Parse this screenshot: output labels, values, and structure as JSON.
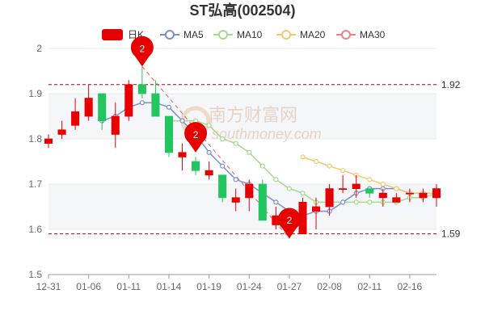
{
  "chart_data": {
    "type": "candlestick",
    "title": "ST弘高(002504)",
    "legend": [
      {
        "name": "日K",
        "color": "#e60000"
      },
      {
        "name": "MA5",
        "color": "#7b8fd0"
      },
      {
        "name": "MA10",
        "color": "#a8d88a"
      },
      {
        "name": "MA20",
        "color": "#f6c66a"
      },
      {
        "name": "MA30",
        "color": "#f08080"
      }
    ],
    "colors": {
      "up": "#e60000",
      "down": "#22c55e",
      "grid": "#e8e8e8",
      "ref_line": "#b00000",
      "pin": "#e60000",
      "trend": "#e06060"
    },
    "y_range": [
      1.5,
      2.0
    ],
    "y_ticks": [
      "1.5",
      "1.6",
      "1.7",
      "1.8",
      "1.9",
      "2"
    ],
    "x_tick_labels": [
      {
        "index": 0,
        "label": "12-31"
      },
      {
        "index": 3,
        "label": "01-06"
      },
      {
        "index": 6,
        "label": "01-11"
      },
      {
        "index": 9,
        "label": "01-14"
      },
      {
        "index": 12,
        "label": "01-19"
      },
      {
        "index": 15,
        "label": "01-24"
      },
      {
        "index": 18,
        "label": "01-27"
      },
      {
        "index": 21,
        "label": "02-08"
      },
      {
        "index": 24,
        "label": "02-11"
      },
      {
        "index": 27,
        "label": "02-16"
      }
    ],
    "candles": [
      {
        "o": 1.79,
        "c": 1.8,
        "h": 1.81,
        "l": 1.78
      },
      {
        "o": 1.81,
        "c": 1.82,
        "h": 1.84,
        "l": 1.8
      },
      {
        "o": 1.83,
        "c": 1.86,
        "h": 1.89,
        "l": 1.82
      },
      {
        "o": 1.85,
        "c": 1.89,
        "h": 1.92,
        "l": 1.84
      },
      {
        "o": 1.9,
        "c": 1.84,
        "h": 1.9,
        "l": 1.82
      },
      {
        "o": 1.81,
        "c": 1.85,
        "h": 1.88,
        "l": 1.78
      },
      {
        "o": 1.85,
        "c": 1.92,
        "h": 1.93,
        "l": 1.84
      },
      {
        "o": 1.92,
        "c": 1.9,
        "h": 1.96,
        "l": 1.89
      },
      {
        "o": 1.9,
        "c": 1.85,
        "h": 1.93,
        "l": 1.85
      },
      {
        "o": 1.85,
        "c": 1.77,
        "h": 1.85,
        "l": 1.76
      },
      {
        "o": 1.76,
        "c": 1.77,
        "h": 1.79,
        "l": 1.73
      },
      {
        "o": 1.75,
        "c": 1.73,
        "h": 1.76,
        "l": 1.72
      },
      {
        "o": 1.72,
        "c": 1.73,
        "h": 1.75,
        "l": 1.71
      },
      {
        "o": 1.72,
        "c": 1.67,
        "h": 1.72,
        "l": 1.66
      },
      {
        "o": 1.66,
        "c": 1.67,
        "h": 1.69,
        "l": 1.64
      },
      {
        "o": 1.67,
        "c": 1.7,
        "h": 1.71,
        "l": 1.64
      },
      {
        "o": 1.7,
        "c": 1.62,
        "h": 1.71,
        "l": 1.62
      },
      {
        "o": 1.61,
        "c": 1.63,
        "h": 1.65,
        "l": 1.6
      },
      {
        "o": 1.6,
        "c": 1.62,
        "h": 1.63,
        "l": 1.58
      },
      {
        "o": 1.59,
        "c": 1.66,
        "h": 1.67,
        "l": 1.59
      },
      {
        "o": 1.64,
        "c": 1.65,
        "h": 1.67,
        "l": 1.6
      },
      {
        "o": 1.65,
        "c": 1.69,
        "h": 1.7,
        "l": 1.63
      },
      {
        "o": 1.69,
        "c": 1.69,
        "h": 1.72,
        "l": 1.68
      },
      {
        "o": 1.69,
        "c": 1.7,
        "h": 1.72,
        "l": 1.67
      },
      {
        "o": 1.69,
        "c": 1.68,
        "h": 1.69,
        "l": 1.67
      },
      {
        "o": 1.67,
        "c": 1.68,
        "h": 1.69,
        "l": 1.65
      },
      {
        "o": 1.66,
        "c": 1.67,
        "h": 1.68,
        "l": 1.66
      },
      {
        "o": 1.68,
        "c": 1.68,
        "h": 1.69,
        "l": 1.66
      },
      {
        "o": 1.67,
        "c": 1.68,
        "h": 1.69,
        "l": 1.66
      },
      {
        "o": 1.67,
        "c": 1.69,
        "h": 1.7,
        "l": 1.65
      }
    ],
    "ma5": [
      null,
      null,
      null,
      null,
      1.84,
      1.85,
      1.87,
      1.88,
      1.88,
      1.87,
      1.84,
      1.81,
      1.77,
      1.74,
      1.71,
      1.7,
      1.68,
      1.66,
      1.64,
      1.63,
      1.64,
      1.64,
      1.66,
      1.68,
      1.69,
      1.69,
      1.69,
      1.68,
      1.68,
      1.68
    ],
    "ma10": [
      null,
      null,
      null,
      null,
      null,
      null,
      null,
      null,
      null,
      1.84,
      1.84,
      1.84,
      1.83,
      1.8,
      1.79,
      1.77,
      1.74,
      1.71,
      1.69,
      1.68,
      1.66,
      1.66,
      1.66,
      1.66,
      1.66,
      1.66,
      1.66,
      1.67,
      1.67,
      1.68
    ],
    "ma20": [
      null,
      null,
      null,
      null,
      null,
      null,
      null,
      null,
      null,
      null,
      null,
      null,
      null,
      null,
      null,
      null,
      null,
      null,
      null,
      1.76,
      1.75,
      1.74,
      1.73,
      1.72,
      1.71,
      1.7,
      1.69,
      1.68,
      1.68,
      1.68
    ],
    "ref_lines": [
      {
        "value": 1.92,
        "label": "1.92"
      },
      {
        "value": 1.59,
        "label": "1.59"
      }
    ],
    "pins": [
      {
        "index": 7,
        "value": 1.96,
        "label": "2"
      },
      {
        "index": 11,
        "value": 1.77,
        "label": "2"
      },
      {
        "index": 18,
        "value": 1.58,
        "label": "2"
      }
    ],
    "trend_line": {
      "from": {
        "index": 7,
        "value": 1.96
      },
      "to": {
        "index": 18,
        "value": 1.58
      }
    },
    "watermark": {
      "text": "南方财富网",
      "subtext": "southmoney.com"
    }
  }
}
